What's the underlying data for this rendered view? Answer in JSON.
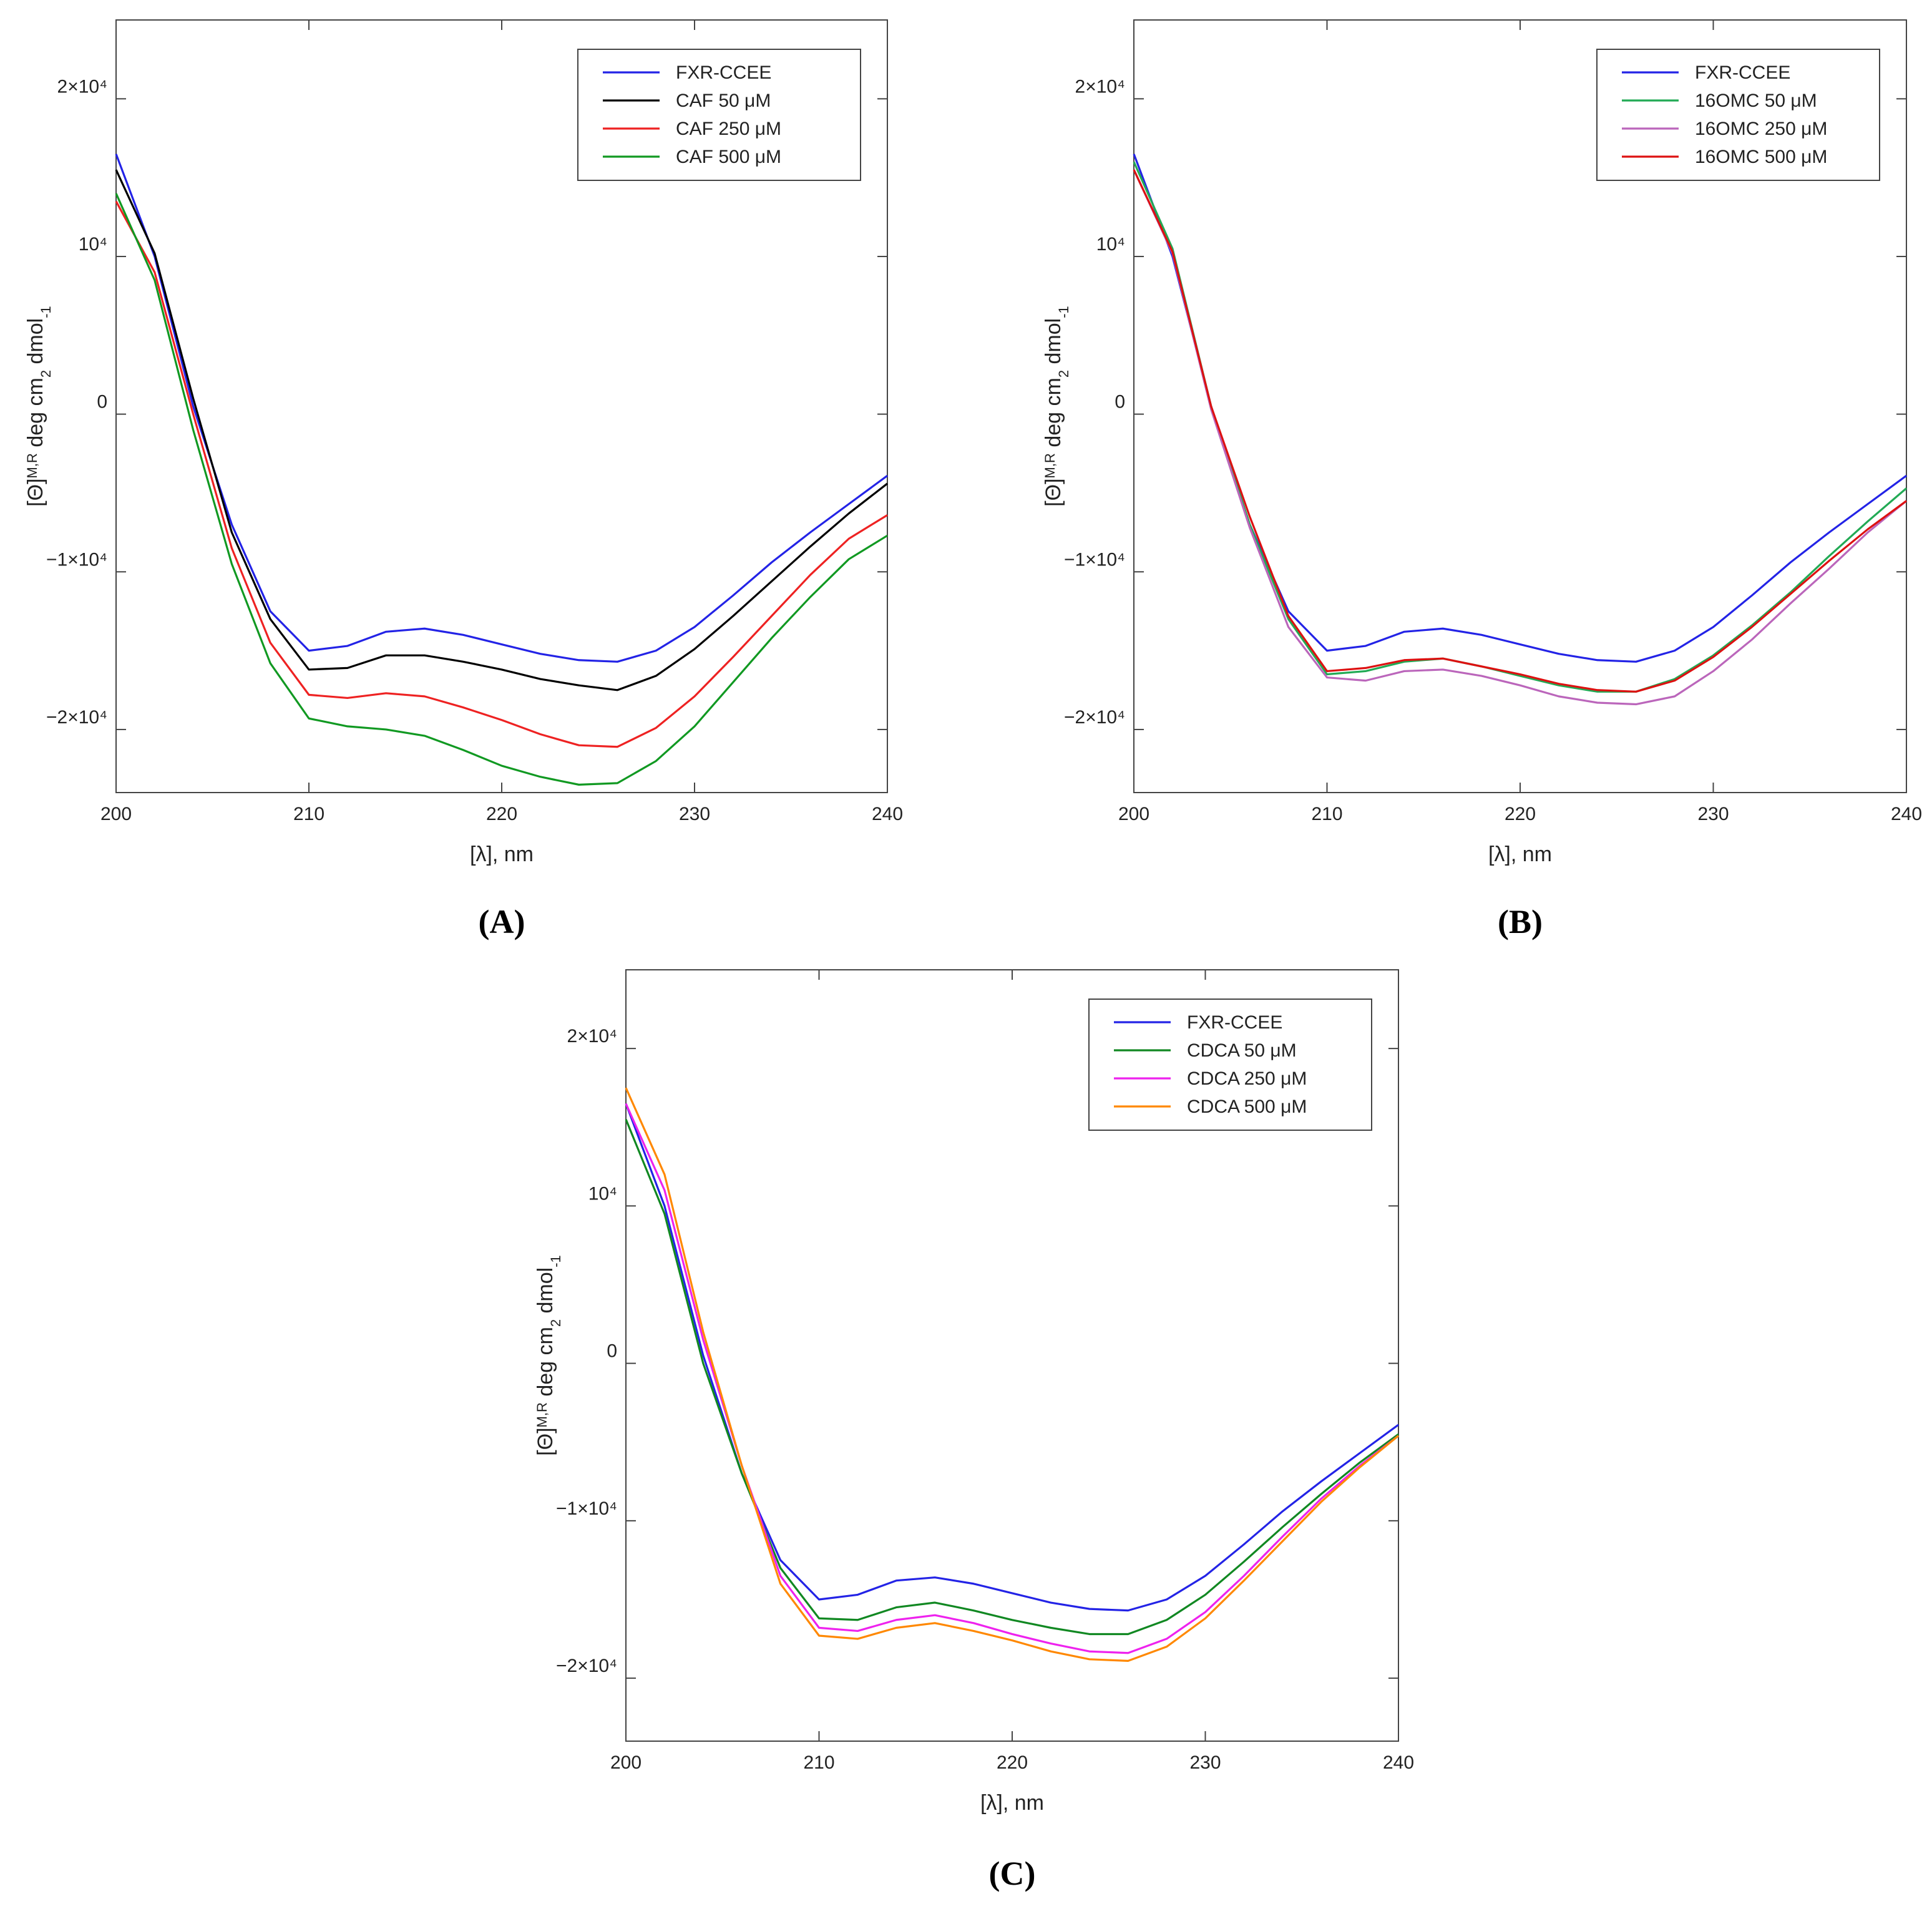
{
  "chart_data": [
    {
      "type": "line",
      "panel_label": "(A)",
      "xlabel": "[λ], nm",
      "ylabel": [
        "[Θ]",
        "M,R",
        " deg cm",
        "2",
        " dmol",
        "-1"
      ],
      "x": [
        200,
        202,
        204,
        206,
        208,
        210,
        212,
        214,
        216,
        218,
        220,
        222,
        224,
        226,
        228,
        230,
        232,
        234,
        236,
        238,
        240
      ],
      "xlim": [
        200,
        240
      ],
      "xticks": [
        200,
        210,
        220,
        230,
        240
      ],
      "ylim": [
        -24000,
        25000
      ],
      "yticks": [
        {
          "value": -20000,
          "label": "−2×10⁴"
        },
        {
          "value": -10000,
          "label": "−1×10⁴"
        },
        0,
        {
          "value": 10000,
          "label": "10⁴"
        },
        {
          "value": 20000,
          "label": "2×10⁴"
        }
      ],
      "legend": "upper right",
      "series": [
        {
          "name": "FXR-CCEE",
          "color": "#2323e6",
          "values": [
            16500,
            10000,
            500,
            -7000,
            -12500,
            -15000,
            -14700,
            -13800,
            -13600,
            -14000,
            -14600,
            -15200,
            -15600,
            -15700,
            -15000,
            -13500,
            -11500,
            -9400,
            -7500,
            -5700,
            -3900
          ]
        },
        {
          "name": "CAF 50 μM",
          "color": "#000000",
          "values": [
            15500,
            10200,
            1000,
            -7500,
            -13000,
            -16200,
            -16100,
            -15300,
            -15300,
            -15700,
            -16200,
            -16800,
            -17200,
            -17500,
            -16600,
            -14900,
            -12800,
            -10600,
            -8400,
            -6300,
            -4400
          ]
        },
        {
          "name": "CAF 250 μM",
          "color": "#ee2222",
          "values": [
            13500,
            9000,
            0,
            -8500,
            -14500,
            -17800,
            -18000,
            -17700,
            -17900,
            -18600,
            -19400,
            -20300,
            -21000,
            -21100,
            -19900,
            -17900,
            -15400,
            -12800,
            -10200,
            -7900,
            -6400
          ]
        },
        {
          "name": "CAF 500 μM",
          "color": "#119922",
          "values": [
            14000,
            8500,
            -1000,
            -9500,
            -15800,
            -19300,
            -19800,
            -20000,
            -20400,
            -21300,
            -22300,
            -23000,
            -23500,
            -23400,
            -22000,
            -19800,
            -17000,
            -14200,
            -11600,
            -9200,
            -7700
          ]
        }
      ]
    },
    {
      "type": "line",
      "panel_label": "(B)",
      "xlabel": "[λ], nm",
      "ylabel": [
        "[Θ]",
        "M,R",
        " deg cm",
        "2",
        " dmol",
        "-1"
      ],
      "x": [
        200,
        202,
        204,
        206,
        208,
        210,
        212,
        214,
        216,
        218,
        220,
        222,
        224,
        226,
        228,
        230,
        232,
        234,
        236,
        238,
        240
      ],
      "xlim": [
        200,
        240
      ],
      "xticks": [
        200,
        210,
        220,
        230,
        240
      ],
      "ylim": [
        -24000,
        25000
      ],
      "yticks": [
        {
          "value": -20000,
          "label": "−2×10⁴"
        },
        {
          "value": -10000,
          "label": "−1×10⁴"
        },
        0,
        {
          "value": 10000,
          "label": "10⁴"
        },
        {
          "value": 20000,
          "label": "2×10⁴"
        }
      ],
      "legend": "upper right",
      "series": [
        {
          "name": "FXR-CCEE",
          "color": "#2323e6",
          "values": [
            16500,
            10000,
            500,
            -7000,
            -12500,
            -15000,
            -14700,
            -13800,
            -13600,
            -14000,
            -14600,
            -15200,
            -15600,
            -15700,
            -15000,
            -13500,
            -11500,
            -9400,
            -7500,
            -5700,
            -3900
          ]
        },
        {
          "name": "16OMC 50 μM",
          "color": "#22aa55",
          "values": [
            16000,
            10500,
            500,
            -7000,
            -13000,
            -16500,
            -16300,
            -15700,
            -15500,
            -16000,
            -16600,
            -17200,
            -17600,
            -17600,
            -16800,
            -15300,
            -13400,
            -11300,
            -9000,
            -6800,
            -4700
          ]
        },
        {
          "name": "16OMC 250 μM",
          "color": "#bb66bb",
          "values": [
            15500,
            10200,
            300,
            -7200,
            -13500,
            -16700,
            -16900,
            -16300,
            -16200,
            -16600,
            -17200,
            -17900,
            -18300,
            -18400,
            -17900,
            -16300,
            -14300,
            -12000,
            -9800,
            -7500,
            -5500
          ]
        },
        {
          "name": "16OMC 500 μM",
          "color": "#dd1111",
          "values": [
            15500,
            10300,
            500,
            -6500,
            -12800,
            -16300,
            -16100,
            -15600,
            -15500,
            -16000,
            -16500,
            -17100,
            -17500,
            -17600,
            -16900,
            -15400,
            -13500,
            -11400,
            -9300,
            -7300,
            -5500
          ]
        }
      ]
    },
    {
      "type": "line",
      "panel_label": "(C)",
      "xlabel": "[λ], nm",
      "ylabel": [
        "[Θ]",
        "M,R",
        " deg cm",
        "2",
        " dmol",
        "-1"
      ],
      "x": [
        200,
        202,
        204,
        206,
        208,
        210,
        212,
        214,
        216,
        218,
        220,
        222,
        224,
        226,
        228,
        230,
        232,
        234,
        236,
        238,
        240
      ],
      "xlim": [
        200,
        240
      ],
      "xticks": [
        200,
        210,
        220,
        230,
        240
      ],
      "ylim": [
        -24000,
        25000
      ],
      "yticks": [
        {
          "value": -20000,
          "label": "−2×10⁴"
        },
        {
          "value": -10000,
          "label": "−1×10⁴"
        },
        0,
        {
          "value": 10000,
          "label": "10⁴"
        },
        {
          "value": 20000,
          "label": "2×10⁴"
        }
      ],
      "legend": "upper right",
      "series": [
        {
          "name": "FXR-CCEE",
          "color": "#2323e6",
          "values": [
            16500,
            10000,
            500,
            -7000,
            -12500,
            -15000,
            -14700,
            -13800,
            -13600,
            -14000,
            -14600,
            -15200,
            -15600,
            -15700,
            -15000,
            -13500,
            -11500,
            -9400,
            -7500,
            -5700,
            -3900
          ]
        },
        {
          "name": "CDCA 50 μM",
          "color": "#118822",
          "values": [
            15500,
            9500,
            0,
            -7000,
            -13000,
            -16200,
            -16300,
            -15500,
            -15200,
            -15700,
            -16300,
            -16800,
            -17200,
            -17200,
            -16300,
            -14700,
            -12600,
            -10400,
            -8300,
            -6300,
            -4500
          ]
        },
        {
          "name": "CDCA 250 μM",
          "color": "#ee22ee",
          "values": [
            16500,
            11000,
            1500,
            -6500,
            -13500,
            -16800,
            -17000,
            -16300,
            -16000,
            -16500,
            -17200,
            -17800,
            -18300,
            -18400,
            -17500,
            -15800,
            -13500,
            -11000,
            -8600,
            -6500,
            -4600
          ]
        },
        {
          "name": "CDCA 500 μM",
          "color": "#ff8800",
          "values": [
            17500,
            12000,
            2000,
            -6500,
            -14000,
            -17300,
            -17500,
            -16800,
            -16500,
            -17000,
            -17600,
            -18300,
            -18800,
            -18900,
            -18000,
            -16200,
            -13800,
            -11300,
            -8800,
            -6600,
            -4600
          ]
        }
      ]
    }
  ]
}
